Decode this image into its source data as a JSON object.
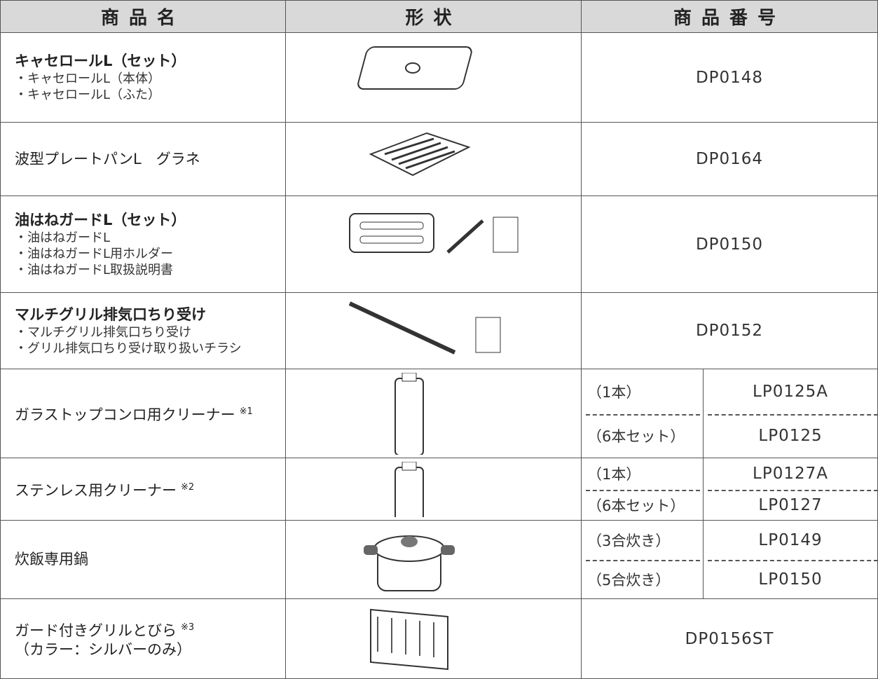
{
  "header": [
    "商品名",
    "形状",
    "商品番号"
  ],
  "rows": [
    {
      "name": "キャセロールL（セット）",
      "items": [
        "・キャセロールL（本体）",
        "・キャセロールL（ふた）"
      ],
      "code": "DP0148"
    },
    {
      "name": "波型プレートパンL　グラネ",
      "code": "DP0164"
    },
    {
      "name": "油はねガードL（セット）",
      "items": [
        "・油はねガードL",
        "・油はねガードL用ホルダー",
        "・油はねガードL取扱説明書"
      ],
      "code": "DP0150"
    },
    {
      "name": "マルチグリル排気口ちり受け",
      "items": [
        "・マルチグリル排気口ちり受け",
        "・グリル排気口ちり受け取り扱いチラシ"
      ],
      "code": "DP0152"
    },
    {
      "name": "ガラストップコンロ用クリーナー",
      "note": "※1",
      "variants": [
        {
          "label": "（1本）",
          "code": "LP0125A"
        },
        {
          "label": "（6本セット）",
          "code": "LP0125"
        }
      ]
    },
    {
      "name": "ステンレス用クリーナー",
      "note": "※2",
      "variants": [
        {
          "label": "（1本）",
          "code": "LP0127A"
        },
        {
          "label": "（6本セット）",
          "code": "LP0127"
        }
      ]
    },
    {
      "name": "炊飯専用鍋",
      "variants": [
        {
          "label": "（3合炊き）",
          "code": "LP0149"
        },
        {
          "label": "（5合炊き）",
          "code": "LP0150"
        }
      ]
    },
    {
      "name": "ガード付きグリルとびら",
      "note": "※3",
      "sub": "（カラー：シルバーのみ）",
      "code": "DP0156ST"
    }
  ]
}
